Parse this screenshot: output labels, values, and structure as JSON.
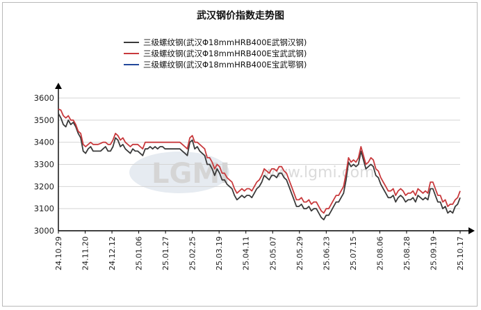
{
  "chart_data": {
    "type": "line",
    "title": "武汉钢价指数走势图",
    "xlabel": "",
    "ylabel": "",
    "ylim": [
      3000,
      3600
    ],
    "yticks": [
      3000,
      3100,
      3200,
      3300,
      3400,
      3500,
      3600
    ],
    "x_tick_labels": [
      "24.10.29",
      "24.11.20",
      "24.12.12",
      "25.01.06",
      "25.01.27",
      "25.02.25",
      "25.03.19",
      "25.04.11",
      "25.05.07",
      "25.05.29",
      "25.06.23",
      "25.07.15",
      "25.08.06",
      "25.08.28",
      "25.09.19",
      "25.10.17"
    ],
    "grid": true,
    "legend_position": "top-center",
    "watermark": {
      "logo": "LGMI",
      "text": "www.lgmi.com"
    },
    "x_index": [
      0,
      1,
      2,
      3,
      4,
      5,
      6,
      7,
      8,
      9,
      10,
      11,
      12,
      13,
      14,
      15,
      16,
      17,
      18,
      19,
      20,
      21,
      22,
      23,
      24,
      25,
      26,
      27,
      28,
      29,
      30,
      31,
      32,
      33,
      34,
      35,
      36,
      37,
      38,
      39,
      40,
      41,
      42,
      43,
      44,
      45,
      46,
      47,
      48,
      49,
      50,
      51,
      52,
      53,
      54,
      55,
      56,
      57,
      58,
      59,
      60,
      61,
      62,
      63,
      64,
      65,
      66,
      67,
      68,
      69,
      70,
      71,
      72,
      73,
      74,
      75,
      76,
      77,
      78,
      79,
      80,
      81,
      82,
      83,
      84,
      85,
      86,
      87,
      88,
      89,
      90,
      91,
      92,
      93,
      94,
      95,
      96,
      97,
      98,
      99,
      100,
      101,
      102,
      103,
      104,
      105,
      106,
      107,
      108,
      109,
      110,
      111,
      112,
      113,
      114,
      115,
      116,
      117,
      118,
      119,
      120,
      121,
      122,
      123,
      124,
      125,
      126,
      127,
      128,
      129,
      130,
      131,
      132,
      133,
      134,
      135,
      136,
      137,
      138,
      139,
      140,
      141,
      142,
      143,
      144,
      145,
      146,
      147,
      148,
      149,
      150,
      151,
      152,
      153,
      154,
      155,
      156,
      157,
      158,
      159,
      160,
      161,
      162,
      163,
      164,
      165,
      166,
      167,
      168,
      169,
      170,
      171,
      172,
      173,
      174,
      175,
      176,
      177,
      178,
      179,
      180,
      181,
      182,
      183,
      184,
      185,
      186,
      187,
      188,
      189,
      190,
      191,
      192,
      193,
      194,
      195,
      196,
      197,
      198,
      199,
      200,
      201,
      202,
      203,
      204,
      205,
      206,
      207,
      208,
      209,
      210,
      211,
      212,
      213,
      214,
      215,
      216,
      217,
      218,
      219,
      220,
      221,
      222,
      223,
      224,
      225,
      226,
      227,
      228,
      229,
      230,
      231,
      232,
      233,
      234,
      235,
      236,
      237,
      238,
      239,
      240,
      241,
      242,
      243,
      244,
      245,
      246,
      247,
      248,
      249,
      250,
      251,
      252,
      253,
      254,
      255,
      256,
      257,
      258,
      259,
      260,
      261,
      262,
      263,
      264,
      265,
      266,
      267,
      268,
      269,
      270,
      271,
      272,
      273,
      274,
      275,
      276,
      277,
      278,
      279,
      280,
      281,
      282,
      283,
      284,
      285,
      286,
      287,
      288,
      289,
      290,
      291,
      292,
      293,
      294,
      295,
      296,
      297,
      298,
      299,
      300,
      301,
      302,
      303,
      304,
      305,
      306,
      307,
      308,
      309,
      310,
      311,
      312,
      313,
      314,
      315,
      316,
      317,
      318,
      319,
      320,
      321,
      322,
      323,
      324,
      325,
      326,
      327,
      328,
      329,
      330,
      331,
      332,
      333,
      334,
      335,
      336,
      337,
      338,
      339,
      340,
      341,
      342,
      343,
      344,
      345,
      346,
      347,
      348,
      349,
      350,
      351,
      352,
      353,
      354,
      355,
      356,
      357,
      358,
      359,
      360,
      361,
      362,
      363,
      364,
      365,
      366,
      367,
      368,
      369,
      370,
      371,
      372,
      373,
      374,
      375,
      376,
      377,
      378,
      379,
      380,
      381,
      382,
      383,
      384,
      385,
      386,
      387,
      388,
      389,
      390,
      391,
      392,
      393,
      394,
      395,
      396,
      397,
      398,
      399,
      400,
      401,
      402,
      403,
      404,
      405,
      406,
      407,
      408,
      409,
      410,
      411,
      412,
      413,
      414,
      415,
      416,
      417,
      418,
      419,
      420,
      421,
      422,
      423,
      424,
      425,
      426,
      427,
      428,
      429,
      430,
      431,
      432,
      433,
      434,
      435,
      436,
      437,
      438,
      439,
      440,
      441,
      442,
      443,
      444,
      445,
      446,
      447,
      448,
      449,
      450,
      451,
      452,
      453,
      454,
      455,
      456,
      457,
      458,
      459,
      460,
      461,
      462,
      463,
      464,
      465,
      466,
      467,
      468,
      469,
      470,
      471,
      472,
      473,
      474,
      475,
      476,
      477,
      478,
      479,
      480,
      481,
      482,
      483,
      484,
      485,
      486,
      487,
      488,
      489,
      490,
      491,
      492,
      493,
      494,
      495,
      496,
      497,
      498,
      499,
      500,
      501,
      502,
      503,
      504,
      505,
      506,
      507,
      508,
      509,
      510,
      511,
      512,
      513,
      514,
      515,
      516,
      517,
      518,
      519,
      520,
      521,
      522,
      523,
      524,
      525,
      526,
      527,
      528,
      529,
      530,
      531,
      532,
      533,
      534,
      535,
      536,
      537,
      538,
      539,
      540,
      541,
      542,
      543,
      544,
      545,
      546,
      547,
      548,
      549,
      550,
      551,
      552,
      553,
      554,
      555,
      556,
      557,
      558,
      559,
      560,
      561,
      562,
      563,
      564,
      565,
      566,
      567,
      568,
      569,
      570,
      571,
      572,
      573,
      574,
      575,
      576,
      577,
      578,
      579,
      580,
      581,
      582,
      583,
      584,
      585,
      586,
      587,
      588,
      589,
      590,
      591,
      592,
      593,
      594,
      595,
      596,
      597,
      598,
      599,
      600
    ],
    "x_index_max": 600,
    "x_tick_positions": [
      0,
      40,
      80,
      120,
      160,
      200,
      240,
      280,
      320,
      360,
      400,
      440,
      480,
      520,
      560,
      600
    ],
    "series": [
      {
        "name": "三级螺纹钢(武汉Φ18mmHRB400E武钢汉钢)",
        "color": "#3a3a3a",
        "values": [
          3530,
          3510,
          3480,
          3470,
          3500,
          3480,
          3490,
          3470,
          3440,
          3420,
          3360,
          3350,
          3370,
          3380,
          3360,
          3360,
          3360,
          3360,
          3370,
          3380,
          3360,
          3360,
          3380,
          3420,
          3410,
          3380,
          3390,
          3370,
          3360,
          3350,
          3370,
          3360,
          3360,
          3350,
          3340,
          3370,
          3370,
          3380,
          3370,
          3380,
          3370,
          3380,
          3380,
          3370,
          3370,
          3370,
          3370,
          3370,
          3370,
          3370,
          3360,
          3350,
          3340,
          3400,
          3410,
          3370,
          3380,
          3360,
          3350,
          3340,
          3300,
          3300,
          3280,
          3250,
          3280,
          3260,
          3230,
          3230,
          3210,
          3200,
          3190,
          3160,
          3140,
          3150,
          3160,
          3150,
          3160,
          3160,
          3150,
          3170,
          3190,
          3200,
          3220,
          3250,
          3240,
          3230,
          3250,
          3250,
          3240,
          3260,
          3260,
          3240,
          3230,
          3200,
          3170,
          3140,
          3110,
          3110,
          3120,
          3100,
          3100,
          3110,
          3090,
          3100,
          3100,
          3080,
          3060,
          3050,
          3070,
          3070,
          3090,
          3110,
          3130,
          3130,
          3150,
          3170,
          3230,
          3310,
          3290,
          3300,
          3290,
          3300,
          3360,
          3320,
          3280,
          3290,
          3300,
          3290,
          3250,
          3240,
          3210,
          3190,
          3170,
          3150,
          3150,
          3160,
          3130,
          3150,
          3160,
          3150,
          3130,
          3140,
          3140,
          3150,
          3130,
          3160,
          3150,
          3140,
          3150,
          3140,
          3190,
          3190,
          3160,
          3130,
          3130,
          3100,
          3110,
          3080,
          3090,
          3080,
          3110,
          3120,
          3150
        ],
        "x_step": 3.75
      },
      {
        "name": "三级螺纹钢(武汉Φ18mmHRB400E宝武武钢)",
        "color": "#c8393c",
        "values": [
          3550,
          3545,
          3520,
          3510,
          3520,
          3500,
          3500,
          3480,
          3450,
          3440,
          3390,
          3380,
          3390,
          3400,
          3390,
          3390,
          3390,
          3395,
          3400,
          3400,
          3390,
          3390,
          3410,
          3440,
          3430,
          3410,
          3420,
          3400,
          3390,
          3380,
          3390,
          3390,
          3390,
          3380,
          3370,
          3400,
          3400,
          3400,
          3400,
          3400,
          3400,
          3400,
          3400,
          3400,
          3400,
          3400,
          3400,
          3400,
          3400,
          3400,
          3390,
          3380,
          3370,
          3420,
          3430,
          3400,
          3400,
          3390,
          3380,
          3370,
          3330,
          3330,
          3310,
          3280,
          3300,
          3290,
          3260,
          3260,
          3240,
          3230,
          3220,
          3190,
          3170,
          3180,
          3190,
          3180,
          3190,
          3190,
          3180,
          3200,
          3220,
          3230,
          3250,
          3280,
          3270,
          3260,
          3280,
          3280,
          3270,
          3290,
          3290,
          3270,
          3260,
          3230,
          3200,
          3170,
          3140,
          3140,
          3150,
          3130,
          3130,
          3140,
          3120,
          3130,
          3130,
          3110,
          3090,
          3080,
          3100,
          3100,
          3120,
          3140,
          3160,
          3160,
          3180,
          3200,
          3260,
          3330,
          3310,
          3320,
          3310,
          3330,
          3380,
          3340,
          3300,
          3310,
          3330,
          3320,
          3280,
          3270,
          3240,
          3220,
          3200,
          3180,
          3180,
          3190,
          3160,
          3180,
          3190,
          3180,
          3160,
          3170,
          3170,
          3180,
          3160,
          3190,
          3180,
          3170,
          3180,
          3170,
          3220,
          3220,
          3190,
          3160,
          3160,
          3130,
          3140,
          3110,
          3120,
          3120,
          3140,
          3150,
          3180
        ],
        "x_step": 3.75
      },
      {
        "name": "三级螺纹钢(武汉Φ18mmHRB400E宝武鄂钢)",
        "color": "#22479a",
        "values": [],
        "x_step": 3.75
      }
    ]
  }
}
